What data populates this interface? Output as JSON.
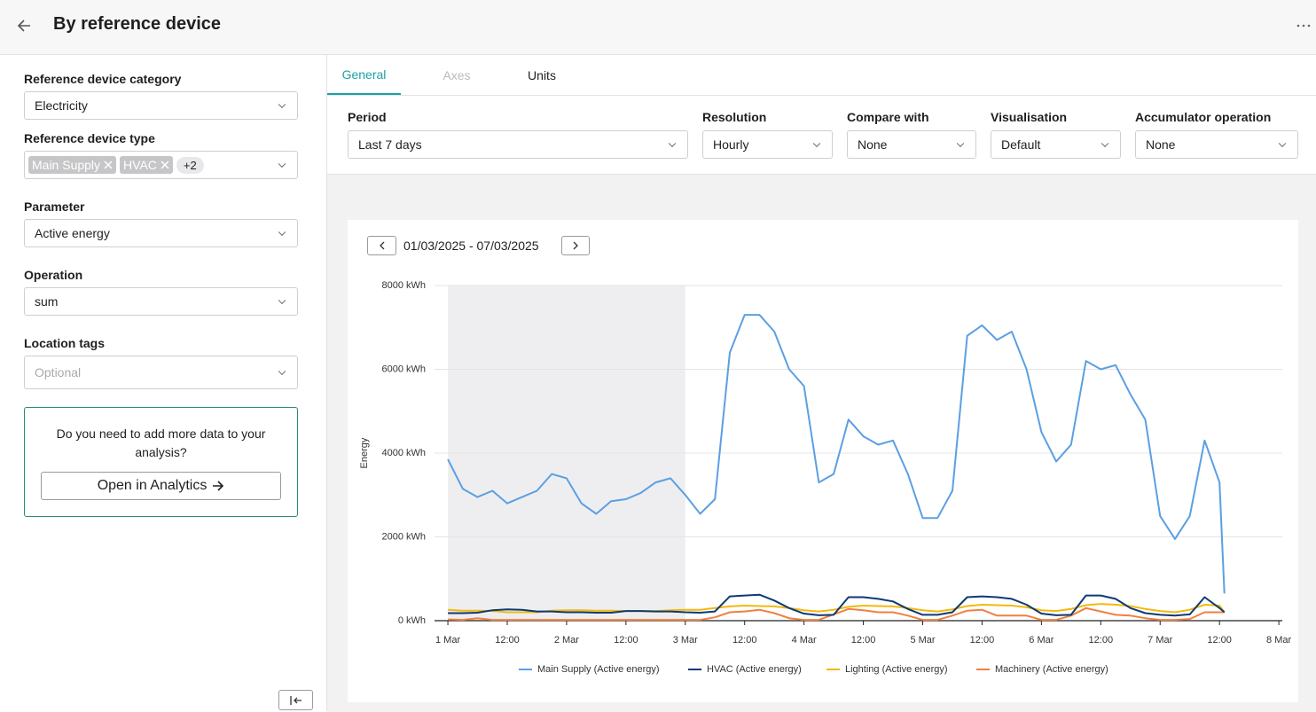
{
  "header": {
    "title": "By reference device"
  },
  "sidebar": {
    "fields": [
      {
        "label": "Reference device category",
        "value": "Electricity"
      },
      {
        "label": "Reference device type",
        "chips": [
          "Main Supply",
          "HVAC"
        ],
        "more": "+2"
      },
      {
        "label": "Parameter",
        "value": "Active energy"
      },
      {
        "label": "Operation",
        "value": "sum"
      },
      {
        "label": "Location tags",
        "placeholder": "Optional"
      }
    ],
    "promo": {
      "text": "Do you need to add more data to your analysis?",
      "button": "Open in Analytics"
    }
  },
  "tabs": [
    "General",
    "Axes",
    "Units"
  ],
  "controls": [
    {
      "label": "Period",
      "value": "Last 7 days"
    },
    {
      "label": "Resolution",
      "value": "Hourly"
    },
    {
      "label": "Compare with",
      "value": "None"
    },
    {
      "label": "Visualisation",
      "value": "Default"
    },
    {
      "label": "Accumulator operation",
      "value": "None"
    }
  ],
  "date_range": "01/03/2025 - 07/03/2025",
  "chart_data": {
    "type": "line",
    "y_label": "Energy",
    "xlim": [
      -2.7,
      168.7
    ],
    "ylim": [
      0,
      8000
    ],
    "grid": true,
    "legend": "bottom",
    "shaded_x": [
      0,
      48
    ],
    "xticks": [
      {
        "value": 0,
        "label": "1 Mar"
      },
      {
        "value": 12,
        "label": "12:00"
      },
      {
        "value": 24,
        "label": "2 Mar"
      },
      {
        "value": 36,
        "label": "12:00"
      },
      {
        "value": 48,
        "label": "3 Mar"
      },
      {
        "value": 60,
        "label": "12:00"
      },
      {
        "value": 72,
        "label": "4 Mar"
      },
      {
        "value": 84,
        "label": "12:00"
      },
      {
        "value": 96,
        "label": "5 Mar"
      },
      {
        "value": 108,
        "label": "12:00"
      },
      {
        "value": 120,
        "label": "6 Mar"
      },
      {
        "value": 132,
        "label": "12:00"
      },
      {
        "value": 144,
        "label": "7 Mar"
      },
      {
        "value": 156,
        "label": "12:00"
      },
      {
        "value": 168,
        "label": "8 Mar"
      }
    ],
    "yticks": [
      {
        "value": 0,
        "label": "0 kWh"
      },
      {
        "value": 2000,
        "label": "2000 kWh"
      },
      {
        "value": 4000,
        "label": "4000 kWh"
      },
      {
        "value": 6000,
        "label": "6000 kWh"
      },
      {
        "value": 8000,
        "label": "8000 kWh"
      }
    ],
    "x": [
      0,
      3,
      6,
      9,
      12,
      15,
      18,
      21,
      24,
      27,
      30,
      33,
      36,
      39,
      42,
      45,
      48,
      51,
      54,
      57,
      60,
      63,
      66,
      69,
      72,
      75,
      78,
      81,
      84,
      87,
      90,
      93,
      96,
      99,
      102,
      105,
      108,
      111,
      114,
      117,
      120,
      123,
      126,
      129,
      132,
      135,
      138,
      141,
      144,
      147,
      150,
      153,
      156,
      157
    ],
    "series": [
      {
        "name": "Main Supply (Active energy)",
        "color": "#5b9fe3",
        "values": [
          3850,
          3150,
          2950,
          3100,
          2800,
          2950,
          3100,
          3500,
          3400,
          2800,
          2550,
          2850,
          2900,
          3050,
          3300,
          3400,
          3000,
          2550,
          2900,
          6400,
          7300,
          7300,
          6900,
          6000,
          5600,
          3300,
          3500,
          4800,
          4400,
          4200,
          4300,
          3500,
          2450,
          2450,
          3100,
          6800,
          7050,
          6700,
          6900,
          6000,
          4500,
          3800,
          4200,
          6200,
          6000,
          6100,
          5400,
          4800,
          2500,
          1950,
          2500,
          4300,
          3300,
          650
        ]
      },
      {
        "name": "HVAC (Active energy)",
        "color": "#0d3a73",
        "values": [
          180,
          180,
          190,
          250,
          270,
          260,
          220,
          220,
          200,
          200,
          190,
          190,
          230,
          230,
          220,
          220,
          200,
          190,
          220,
          580,
          600,
          620,
          480,
          300,
          170,
          130,
          140,
          560,
          560,
          520,
          460,
          280,
          140,
          140,
          200,
          560,
          580,
          560,
          520,
          380,
          170,
          130,
          140,
          600,
          600,
          520,
          300,
          180,
          140,
          120,
          150,
          560,
          300,
          200
        ]
      },
      {
        "name": "Lighting (Active energy)",
        "color": "#f2b90f",
        "values": [
          260,
          240,
          240,
          230,
          200,
          200,
          200,
          240,
          250,
          250,
          240,
          240,
          230,
          230,
          230,
          250,
          260,
          260,
          300,
          340,
          360,
          350,
          340,
          300,
          250,
          220,
          260,
          330,
          360,
          350,
          340,
          300,
          250,
          220,
          270,
          350,
          380,
          370,
          360,
          320,
          250,
          230,
          280,
          370,
          400,
          380,
          350,
          280,
          230,
          200,
          260,
          380,
          360,
          200
        ]
      },
      {
        "name": "Machinery (Active energy)",
        "color": "#f08040",
        "values": [
          30,
          20,
          60,
          20,
          20,
          20,
          20,
          20,
          20,
          20,
          20,
          20,
          20,
          20,
          20,
          20,
          20,
          20,
          80,
          200,
          220,
          260,
          180,
          60,
          20,
          20,
          150,
          280,
          250,
          200,
          200,
          120,
          20,
          20,
          120,
          240,
          260,
          120,
          120,
          120,
          20,
          20,
          120,
          300,
          220,
          140,
          120,
          60,
          20,
          20,
          40,
          200,
          200,
          200
        ]
      }
    ]
  }
}
